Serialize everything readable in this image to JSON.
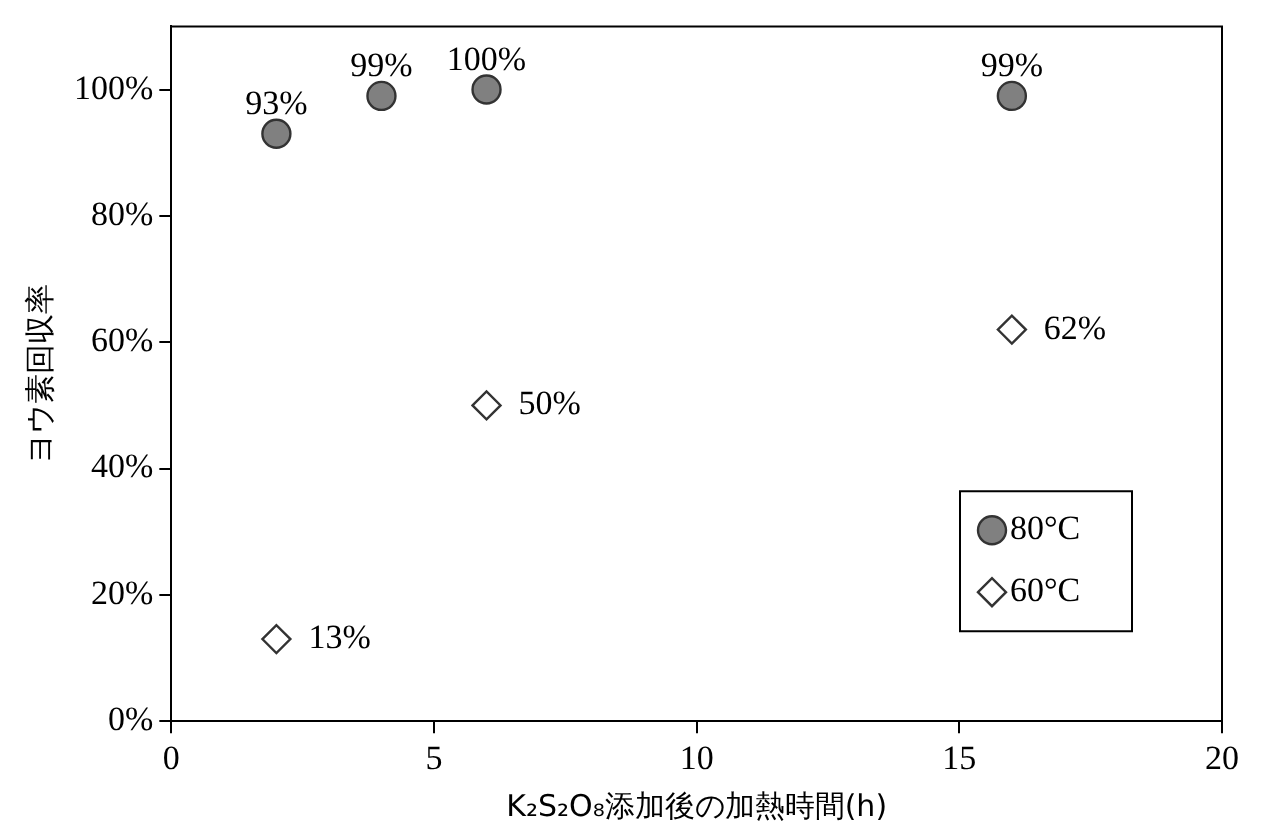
{
  "chart_data": {
    "type": "scatter",
    "xlabel": "K₂S₂O₈添加後の加熱時間(h)",
    "ylabel": "ヨウ素回収率",
    "xlim": [
      0,
      20
    ],
    "xticks": [
      0,
      5,
      10,
      15,
      20
    ],
    "ylim": [
      0,
      110
    ],
    "yticks": [
      {
        "value": 0,
        "label": "0%"
      },
      {
        "value": 20,
        "label": "20%"
      },
      {
        "value": 40,
        "label": "40%"
      },
      {
        "value": 60,
        "label": "60%"
      },
      {
        "value": 80,
        "label": "80%"
      },
      {
        "value": 100,
        "label": "100%"
      }
    ],
    "legend": "bottom right",
    "grid": false,
    "series": [
      {
        "name": "80°C",
        "color": "#808080",
        "marker": "circle",
        "x": [
          2,
          4,
          6,
          16
        ],
        "values": [
          93,
          99,
          100,
          99
        ],
        "value_labels": [
          "93%",
          "99%",
          "100%",
          "99%"
        ]
      },
      {
        "name": "60°C",
        "color": "#ffffff",
        "marker": "diamond",
        "x": [
          2,
          6,
          16
        ],
        "values": [
          13,
          50,
          62
        ],
        "value_labels": [
          "13%",
          "50%",
          "62%"
        ]
      }
    ]
  }
}
